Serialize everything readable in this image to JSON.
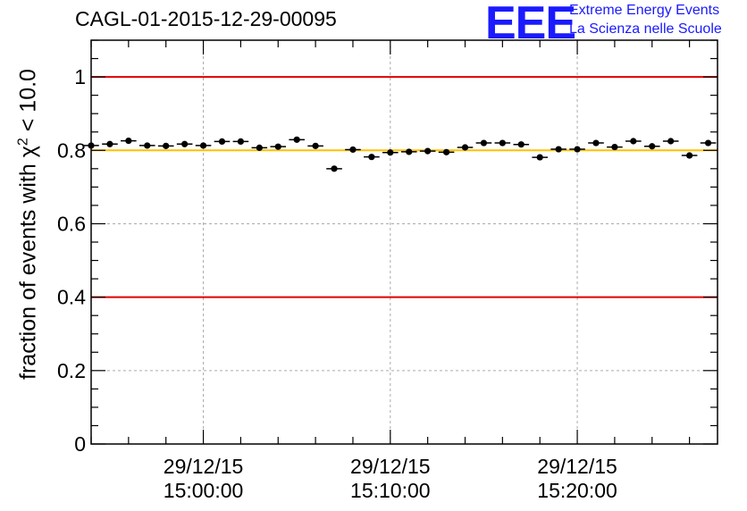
{
  "chart_data": {
    "type": "scatter",
    "title": "CAGL-01-2015-12-29-00095",
    "ylabel": {
      "prefix": "fraction of events with ",
      "symbol": "χ",
      "exponent": "2",
      "suffix": " < 10.0"
    },
    "ylim": [
      0,
      1.1
    ],
    "yticks": [
      {
        "value": 0,
        "label": "0"
      },
      {
        "value": 0.2,
        "label": "0.2"
      },
      {
        "value": 0.4,
        "label": "0.4"
      },
      {
        "value": 0.6,
        "label": "0.6"
      },
      {
        "value": 0.8,
        "label": "0.8"
      },
      {
        "value": 1.0,
        "label": "1"
      }
    ],
    "xlim_minutes": [
      -6.0,
      27.5
    ],
    "xticks": [
      {
        "value": 0,
        "date": "29/12/15",
        "time": "15:00:00"
      },
      {
        "value": 10,
        "date": "29/12/15",
        "time": "15:10:00"
      },
      {
        "value": 20,
        "date": "29/12/15",
        "time": "15:20:00"
      }
    ],
    "grid": true,
    "reference_lines": [
      {
        "y": 1.0,
        "color": "#e00000"
      },
      {
        "y": 0.4,
        "color": "#e00000"
      },
      {
        "y": 0.8,
        "color": "#ffc000"
      }
    ],
    "x_half_width_minutes": 0.42,
    "series": [
      {
        "name": "fraction",
        "x": [
          -6.0,
          -5.0,
          -4.0,
          -3.0,
          -2.0,
          -1.0,
          0.0,
          1.0,
          2.0,
          3.0,
          4.0,
          5.0,
          6.0,
          7.0,
          8.0,
          9.0,
          10.0,
          11.0,
          12.0,
          13.0,
          14.0,
          15.0,
          16.0,
          17.0,
          18.0,
          19.0,
          20.0,
          21.0,
          22.0,
          23.0,
          24.0,
          25.0,
          26.0,
          27.0
        ],
        "y": [
          0.813,
          0.817,
          0.826,
          0.813,
          0.812,
          0.817,
          0.813,
          0.824,
          0.824,
          0.807,
          0.81,
          0.829,
          0.812,
          0.75,
          0.802,
          0.782,
          0.794,
          0.796,
          0.798,
          0.795,
          0.808,
          0.82,
          0.82,
          0.816,
          0.781,
          0.803,
          0.803,
          0.82,
          0.809,
          0.825,
          0.811,
          0.825,
          0.786,
          0.82
        ]
      }
    ]
  }
}
